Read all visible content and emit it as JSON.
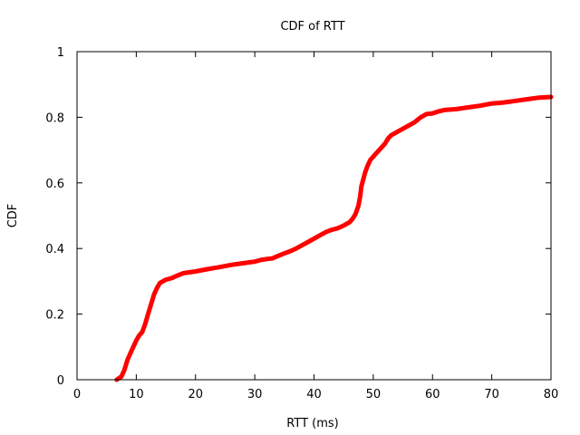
{
  "chart_data": {
    "type": "line",
    "title": "CDF of RTT",
    "xlabel": "RTT (ms)",
    "ylabel": "CDF",
    "xlim": [
      0,
      80
    ],
    "ylim": [
      0,
      1
    ],
    "xticks": [
      0,
      10,
      20,
      30,
      40,
      50,
      60,
      70,
      80
    ],
    "yticks": [
      0,
      0.2,
      0.4,
      0.6,
      0.8,
      1
    ],
    "ytick_labels": [
      "0",
      "0.2",
      "0.4",
      "0.6",
      "0.8",
      "1"
    ],
    "grid": false,
    "legend": "none",
    "series": [
      {
        "color": "#ff0000",
        "points": [
          [
            6.7,
            0.0
          ],
          [
            7.5,
            0.01
          ],
          [
            8.0,
            0.03
          ],
          [
            8.5,
            0.06
          ],
          [
            9.0,
            0.08
          ],
          [
            9.5,
            0.1
          ],
          [
            10.0,
            0.12
          ],
          [
            10.5,
            0.135
          ],
          [
            11.0,
            0.145
          ],
          [
            11.5,
            0.17
          ],
          [
            12.0,
            0.2
          ],
          [
            12.5,
            0.23
          ],
          [
            13.0,
            0.26
          ],
          [
            13.5,
            0.28
          ],
          [
            14.0,
            0.295
          ],
          [
            15.0,
            0.305
          ],
          [
            16.0,
            0.31
          ],
          [
            17.0,
            0.318
          ],
          [
            18.0,
            0.325
          ],
          [
            20.0,
            0.33
          ],
          [
            22.0,
            0.337
          ],
          [
            24.0,
            0.343
          ],
          [
            26.0,
            0.35
          ],
          [
            28.0,
            0.355
          ],
          [
            30.0,
            0.36
          ],
          [
            31.0,
            0.365
          ],
          [
            32.0,
            0.368
          ],
          [
            33.0,
            0.37
          ],
          [
            34.0,
            0.378
          ],
          [
            35.0,
            0.385
          ],
          [
            36.0,
            0.392
          ],
          [
            37.0,
            0.4
          ],
          [
            38.0,
            0.41
          ],
          [
            39.0,
            0.42
          ],
          [
            40.0,
            0.43
          ],
          [
            41.0,
            0.44
          ],
          [
            42.0,
            0.45
          ],
          [
            43.0,
            0.457
          ],
          [
            44.0,
            0.462
          ],
          [
            45.0,
            0.47
          ],
          [
            46.0,
            0.48
          ],
          [
            46.5,
            0.49
          ],
          [
            47.0,
            0.505
          ],
          [
            47.5,
            0.53
          ],
          [
            47.8,
            0.56
          ],
          [
            48.0,
            0.59
          ],
          [
            48.3,
            0.61
          ],
          [
            48.6,
            0.63
          ],
          [
            49.0,
            0.65
          ],
          [
            49.5,
            0.67
          ],
          [
            50.0,
            0.68
          ],
          [
            50.5,
            0.69
          ],
          [
            51.0,
            0.7
          ],
          [
            52.0,
            0.72
          ],
          [
            52.5,
            0.735
          ],
          [
            53.0,
            0.745
          ],
          [
            54.0,
            0.755
          ],
          [
            55.0,
            0.765
          ],
          [
            56.0,
            0.775
          ],
          [
            57.0,
            0.785
          ],
          [
            58.0,
            0.8
          ],
          [
            59.0,
            0.81
          ],
          [
            60.0,
            0.812
          ],
          [
            61.0,
            0.818
          ],
          [
            62.0,
            0.822
          ],
          [
            64.0,
            0.825
          ],
          [
            66.0,
            0.83
          ],
          [
            68.0,
            0.835
          ],
          [
            70.0,
            0.842
          ],
          [
            72.0,
            0.845
          ],
          [
            74.0,
            0.85
          ],
          [
            76.0,
            0.855
          ],
          [
            78.0,
            0.86
          ],
          [
            80.0,
            0.862
          ]
        ]
      }
    ]
  }
}
